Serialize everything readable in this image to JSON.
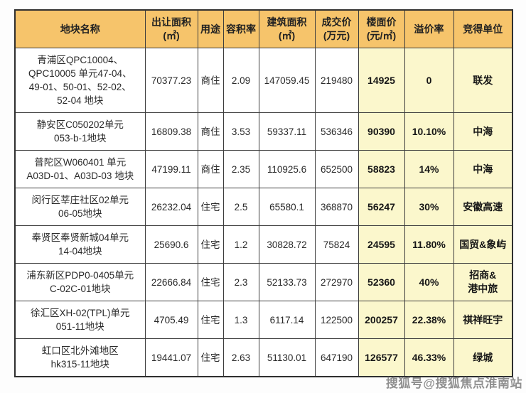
{
  "table": {
    "columns": [
      {
        "label": "地块名称"
      },
      {
        "label": "出让面积\n(㎡)"
      },
      {
        "label": "用途"
      },
      {
        "label": "容积率"
      },
      {
        "label": "建筑面积\n(㎡)"
      },
      {
        "label": "成交价\n(万元)"
      },
      {
        "label": "楼面价\n(元/㎡)"
      },
      {
        "label": "溢价率"
      },
      {
        "label": "竞得单位"
      }
    ],
    "rows": [
      {
        "name": "青浦区QPC10004、\nQPC10005 单元47-04、\n49-01、50-01、52-02、\n52-04 地块",
        "transfer_area": "70377.23",
        "use": "商住",
        "plot_ratio": "2.09",
        "building_area": "147059.45",
        "deal_price": "219480",
        "floor_price": "14925",
        "premium_rate": "0",
        "winner": "联发"
      },
      {
        "name": "静安区C050202单元\n053-b-1地块",
        "transfer_area": "16809.38",
        "use": "商住",
        "plot_ratio": "3.53",
        "building_area": "59337.11",
        "deal_price": "536346",
        "floor_price": "90390",
        "premium_rate": "10.10%",
        "winner": "中海"
      },
      {
        "name": "普陀区W060401 单元\nA03D-01、A03D-03 地块",
        "transfer_area": "47199.11",
        "use": "商住",
        "plot_ratio": "2.35",
        "building_area": "110925.6",
        "deal_price": "652500",
        "floor_price": "58823",
        "premium_rate": "14%",
        "winner": "中海"
      },
      {
        "name": "闵行区莘庄社区02单元\n06-05地块",
        "transfer_area": "26232.04",
        "use": "住宅",
        "plot_ratio": "2.5",
        "building_area": "65580.1",
        "deal_price": "368870",
        "floor_price": "56247",
        "premium_rate": "30%",
        "winner": "安徽高速"
      },
      {
        "name": "奉贤区奉贤新城04单元\n14-04地块",
        "transfer_area": "25690.6",
        "use": "住宅",
        "plot_ratio": "1.2",
        "building_area": "30828.72",
        "deal_price": "75824",
        "floor_price": "24595",
        "premium_rate": "11.80%",
        "winner": "国贸&象屿"
      },
      {
        "name": "浦东新区PDP0-0405单元\nC-02C-01地块",
        "transfer_area": "22666.84",
        "use": "住宅",
        "plot_ratio": "2.3",
        "building_area": "52133.73",
        "deal_price": "272970",
        "floor_price": "52360",
        "premium_rate": "40%",
        "winner": "招商&\n港中旅"
      },
      {
        "name": "徐汇区XH-02(TPL)单元\n051-11地块",
        "transfer_area": "4705.49",
        "use": "住宅",
        "plot_ratio": "1.3",
        "building_area": "6117.14",
        "deal_price": "122500",
        "floor_price": "200257",
        "premium_rate": "22.38%",
        "winner": "祺祥旺宇"
      },
      {
        "name": "虹口区北外滩地区\nhk315-11地块",
        "transfer_area": "19441.07",
        "use": "住宅",
        "plot_ratio": "2.63",
        "building_area": "51130.01",
        "deal_price": "647190",
        "floor_price": "126577",
        "premium_rate": "46.33%",
        "winner": "绿城"
      }
    ]
  },
  "watermark": "搜狐号@搜狐焦点淮南站",
  "colors": {
    "header_bg": "#f6c46b",
    "highlight_bg": "#fbf7cc",
    "border": "#3d3d3d"
  }
}
